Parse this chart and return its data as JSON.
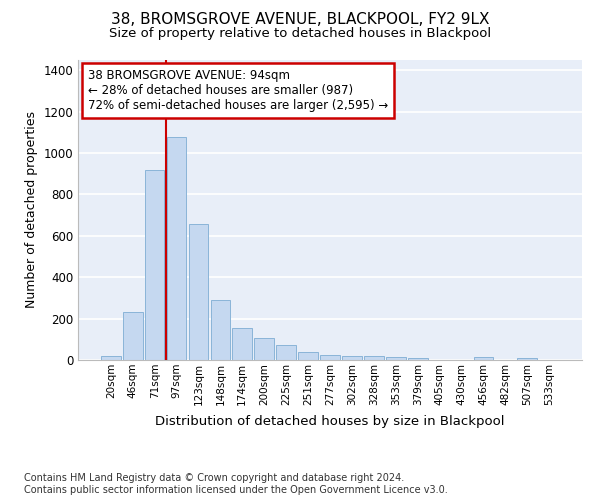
{
  "title1": "38, BROMSGROVE AVENUE, BLACKPOOL, FY2 9LX",
  "title2": "Size of property relative to detached houses in Blackpool",
  "xlabel": "Distribution of detached houses by size in Blackpool",
  "ylabel": "Number of detached properties",
  "categories": [
    "20sqm",
    "46sqm",
    "71sqm",
    "97sqm",
    "123sqm",
    "148sqm",
    "174sqm",
    "200sqm",
    "225sqm",
    "251sqm",
    "277sqm",
    "302sqm",
    "328sqm",
    "353sqm",
    "379sqm",
    "405sqm",
    "430sqm",
    "456sqm",
    "482sqm",
    "507sqm",
    "533sqm"
  ],
  "values": [
    18,
    230,
    920,
    1080,
    655,
    290,
    157,
    107,
    72,
    40,
    25,
    20,
    18,
    15,
    12,
    0,
    0,
    15,
    0,
    12,
    0
  ],
  "bar_color": "#c5d8f0",
  "bar_edge_color": "#8ab4d8",
  "background_color": "#e8eef8",
  "grid_color": "#ffffff",
  "annotation_line1": "38 BROMSGROVE AVENUE: 94sqm",
  "annotation_line2": "← 28% of detached houses are smaller (987)",
  "annotation_line3": "72% of semi-detached houses are larger (2,595) →",
  "annotation_box_color": "#ffffff",
  "annotation_box_edge": "#cc0000",
  "vline_color": "#cc0000",
  "footer": "Contains HM Land Registry data © Crown copyright and database right 2024.\nContains public sector information licensed under the Open Government Licence v3.0.",
  "ylim": [
    0,
    1450
  ],
  "yticks": [
    0,
    200,
    400,
    600,
    800,
    1000,
    1200,
    1400
  ]
}
